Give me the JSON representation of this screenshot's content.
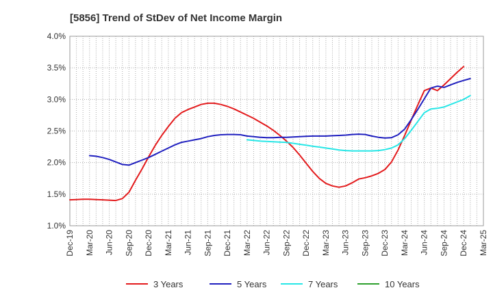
{
  "chart_data": {
    "type": "line",
    "title": "[5856]  Trend of StDev of Net Income Margin",
    "xlabel": "",
    "ylabel": "",
    "x_ticks": [
      "Dec-19",
      "Mar-20",
      "Jun-20",
      "Sep-20",
      "Dec-20",
      "Mar-21",
      "Jun-21",
      "Sep-21",
      "Dec-21",
      "Mar-22",
      "Jun-22",
      "Sep-22",
      "Dec-22",
      "Mar-23",
      "Jun-23",
      "Sep-23",
      "Dec-23",
      "Mar-24",
      "Jun-24",
      "Sep-24",
      "Dec-24",
      "Mar-25"
    ],
    "y_ticks": [
      "1.0%",
      "1.5%",
      "2.0%",
      "2.5%",
      "3.0%",
      "3.5%",
      "4.0%"
    ],
    "ylim": [
      1.0,
      4.0
    ],
    "grid": "dotted",
    "legend_position": "bottom",
    "series": [
      {
        "name": "3 Years",
        "color": "#e31a1c",
        "values": [
          [
            "Dec-19",
            1.41
          ],
          [
            "Jan-20",
            1.415
          ],
          [
            "Feb-20",
            1.42
          ],
          [
            "Mar-20",
            1.42
          ],
          [
            "Apr-20",
            1.415
          ],
          [
            "May-20",
            1.41
          ],
          [
            "Jun-20",
            1.405
          ],
          [
            "Jul-20",
            1.4
          ],
          [
            "Aug-20",
            1.43
          ],
          [
            "Sep-20",
            1.53
          ],
          [
            "Oct-20",
            1.72
          ],
          [
            "Nov-20",
            1.9
          ],
          [
            "Dec-20",
            2.09
          ],
          [
            "Jan-21",
            2.27
          ],
          [
            "Feb-21",
            2.43
          ],
          [
            "Mar-21",
            2.57
          ],
          [
            "Apr-21",
            2.7
          ],
          [
            "May-21",
            2.79
          ],
          [
            "Jun-21",
            2.84
          ],
          [
            "Jul-21",
            2.88
          ],
          [
            "Aug-21",
            2.92
          ],
          [
            "Sep-21",
            2.94
          ],
          [
            "Oct-21",
            2.94
          ],
          [
            "Nov-21",
            2.92
          ],
          [
            "Dec-21",
            2.89
          ],
          [
            "Jan-22",
            2.85
          ],
          [
            "Feb-22",
            2.8
          ],
          [
            "Mar-22",
            2.75
          ],
          [
            "Apr-22",
            2.7
          ],
          [
            "May-22",
            2.64
          ],
          [
            "Jun-22",
            2.58
          ],
          [
            "Jul-22",
            2.51
          ],
          [
            "Aug-22",
            2.43
          ],
          [
            "Sep-22",
            2.34
          ],
          [
            "Oct-22",
            2.24
          ],
          [
            "Nov-22",
            2.12
          ],
          [
            "Dec-22",
            1.99
          ],
          [
            "Jan-23",
            1.86
          ],
          [
            "Feb-23",
            1.75
          ],
          [
            "Mar-23",
            1.67
          ],
          [
            "Apr-23",
            1.63
          ],
          [
            "May-23",
            1.61
          ],
          [
            "Jun-23",
            1.63
          ],
          [
            "Jul-23",
            1.68
          ],
          [
            "Aug-23",
            1.74
          ],
          [
            "Sep-23",
            1.76
          ],
          [
            "Oct-23",
            1.79
          ],
          [
            "Nov-23",
            1.83
          ],
          [
            "Dec-23",
            1.89
          ],
          [
            "Jan-24",
            2.01
          ],
          [
            "Feb-24",
            2.2
          ],
          [
            "Mar-24",
            2.43
          ],
          [
            "Apr-24",
            2.67
          ],
          [
            "May-24",
            2.91
          ],
          [
            "Jun-24",
            3.14
          ],
          [
            "Jul-24",
            3.18
          ],
          [
            "Aug-24",
            3.14
          ],
          [
            "Sep-24",
            3.23
          ],
          [
            "Oct-24",
            3.33
          ],
          [
            "Nov-24",
            3.43
          ],
          [
            "Dec-24",
            3.52
          ]
        ]
      },
      {
        "name": "5 Years",
        "color": "#1f1fbf",
        "values": [
          [
            "Mar-20",
            2.11
          ],
          [
            "Apr-20",
            2.1
          ],
          [
            "May-20",
            2.08
          ],
          [
            "Jun-20",
            2.05
          ],
          [
            "Jul-20",
            2.01
          ],
          [
            "Aug-20",
            1.97
          ],
          [
            "Sep-20",
            1.96
          ],
          [
            "Oct-20",
            2.0
          ],
          [
            "Nov-20",
            2.04
          ],
          [
            "Dec-20",
            2.08
          ],
          [
            "Jan-21",
            2.13
          ],
          [
            "Feb-21",
            2.18
          ],
          [
            "Mar-21",
            2.23
          ],
          [
            "Apr-21",
            2.28
          ],
          [
            "May-21",
            2.32
          ],
          [
            "Jun-21",
            2.34
          ],
          [
            "Jul-21",
            2.36
          ],
          [
            "Aug-21",
            2.38
          ],
          [
            "Sep-21",
            2.41
          ],
          [
            "Oct-21",
            2.43
          ],
          [
            "Nov-21",
            2.44
          ],
          [
            "Dec-21",
            2.445
          ],
          [
            "Jan-22",
            2.445
          ],
          [
            "Feb-22",
            2.44
          ],
          [
            "Mar-22",
            2.42
          ],
          [
            "Apr-22",
            2.41
          ],
          [
            "May-22",
            2.4
          ],
          [
            "Jun-22",
            2.395
          ],
          [
            "Jul-22",
            2.395
          ],
          [
            "Aug-22",
            2.4
          ],
          [
            "Sep-22",
            2.4
          ],
          [
            "Oct-22",
            2.405
          ],
          [
            "Nov-22",
            2.41
          ],
          [
            "Dec-22",
            2.415
          ],
          [
            "Jan-23",
            2.42
          ],
          [
            "Feb-23",
            2.42
          ],
          [
            "Mar-23",
            2.42
          ],
          [
            "Apr-23",
            2.425
          ],
          [
            "May-23",
            2.43
          ],
          [
            "Jun-23",
            2.435
          ],
          [
            "Jul-23",
            2.445
          ],
          [
            "Aug-23",
            2.45
          ],
          [
            "Sep-23",
            2.445
          ],
          [
            "Oct-23",
            2.42
          ],
          [
            "Nov-23",
            2.4
          ],
          [
            "Dec-23",
            2.39
          ],
          [
            "Jan-24",
            2.395
          ],
          [
            "Feb-24",
            2.44
          ],
          [
            "Mar-24",
            2.53
          ],
          [
            "Apr-24",
            2.68
          ],
          [
            "May-24",
            2.84
          ],
          [
            "Jun-24",
            3.01
          ],
          [
            "Jul-24",
            3.18
          ],
          [
            "Aug-24",
            3.21
          ],
          [
            "Sep-24",
            3.19
          ],
          [
            "Oct-24",
            3.23
          ],
          [
            "Nov-24",
            3.27
          ],
          [
            "Dec-24",
            3.3
          ],
          [
            "Jan-25",
            3.33
          ]
        ]
      },
      {
        "name": "7 Years",
        "color": "#26e6e6",
        "values": [
          [
            "Mar-22",
            2.36
          ],
          [
            "Apr-22",
            2.35
          ],
          [
            "May-22",
            2.34
          ],
          [
            "Jun-22",
            2.335
          ],
          [
            "Jul-22",
            2.33
          ],
          [
            "Aug-22",
            2.325
          ],
          [
            "Sep-22",
            2.32
          ],
          [
            "Oct-22",
            2.305
          ],
          [
            "Nov-22",
            2.29
          ],
          [
            "Dec-22",
            2.275
          ],
          [
            "Jan-23",
            2.26
          ],
          [
            "Feb-23",
            2.245
          ],
          [
            "Mar-23",
            2.23
          ],
          [
            "Apr-23",
            2.215
          ],
          [
            "May-23",
            2.2
          ],
          [
            "Jun-23",
            2.19
          ],
          [
            "Jul-23",
            2.185
          ],
          [
            "Aug-23",
            2.185
          ],
          [
            "Sep-23",
            2.185
          ],
          [
            "Oct-23",
            2.185
          ],
          [
            "Nov-23",
            2.19
          ],
          [
            "Dec-23",
            2.205
          ],
          [
            "Jan-24",
            2.23
          ],
          [
            "Feb-24",
            2.28
          ],
          [
            "Mar-24",
            2.38
          ],
          [
            "Apr-24",
            2.51
          ],
          [
            "May-24",
            2.65
          ],
          [
            "Jun-24",
            2.79
          ],
          [
            "Jul-24",
            2.85
          ],
          [
            "Aug-24",
            2.86
          ],
          [
            "Sep-24",
            2.88
          ],
          [
            "Oct-24",
            2.92
          ],
          [
            "Nov-24",
            2.96
          ],
          [
            "Dec-24",
            3.0
          ],
          [
            "Jan-25",
            3.06
          ]
        ]
      },
      {
        "name": "10 Years",
        "color": "#2ca02c",
        "values": []
      }
    ]
  }
}
